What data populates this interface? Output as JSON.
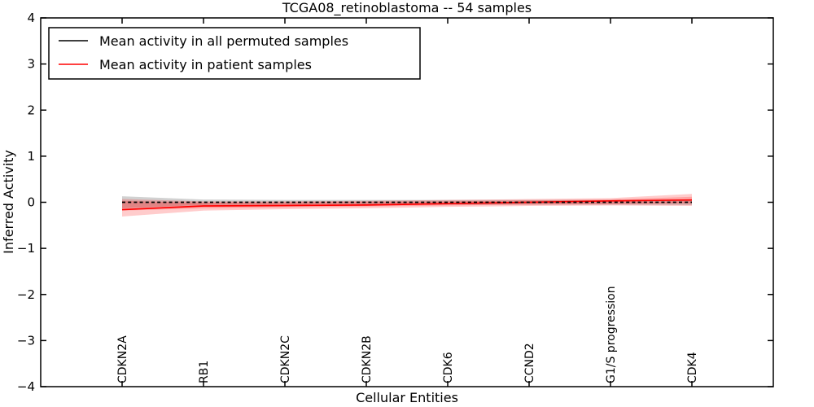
{
  "chart_data": {
    "type": "line",
    "title": "TCGA08_retinoblastoma -- 54 samples",
    "xlabel": "Cellular Entities",
    "ylabel": "Inferred Activity",
    "ylim": [
      -4,
      4
    ],
    "yticks": [
      4,
      3,
      2,
      1,
      0,
      -1,
      -2,
      -3,
      -4
    ],
    "grid": false,
    "legend_position": "upper left",
    "categories": [
      "CDKN2A",
      "RB1",
      "CDKN2C",
      "CDKN2B",
      "CDK6",
      "CCND2",
      "G1/S progression",
      "CDK4"
    ],
    "series": [
      {
        "name": "Mean activity in all permuted samples",
        "color": "#000000",
        "line_style": "dashed",
        "values": [
          0,
          0,
          0,
          0,
          0,
          0,
          0,
          0
        ],
        "band": {
          "upper": [
            0.13,
            0.06,
            0.05,
            0.05,
            0.05,
            0.05,
            0.05,
            0.06
          ],
          "lower": [
            -0.13,
            -0.06,
            -0.05,
            -0.05,
            -0.05,
            -0.05,
            -0.05,
            -0.06
          ],
          "color": "rgba(0,0,0,0.18)"
        }
      },
      {
        "name": "Mean activity in patient samples",
        "color": "#ff0000",
        "line_style": "solid",
        "values": [
          -0.16,
          -0.08,
          -0.07,
          -0.06,
          -0.03,
          0.0,
          0.03,
          0.05
        ],
        "band": {
          "upper": [
            0.07,
            0.02,
            0.02,
            0.03,
            0.05,
            0.07,
            0.09,
            0.18
          ],
          "lower": [
            -0.31,
            -0.18,
            -0.15,
            -0.13,
            -0.1,
            -0.08,
            -0.07,
            -0.08
          ],
          "color": "rgba(255,0,0,0.2)"
        },
        "band_inner": {
          "upper": [
            0.03,
            -0.01,
            0.0,
            0.01,
            0.02,
            0.04,
            0.06,
            0.12
          ],
          "lower": [
            -0.18,
            -0.13,
            -0.11,
            -0.09,
            -0.07,
            -0.05,
            -0.04,
            -0.02
          ],
          "color": "rgba(255,0,0,0.2)"
        }
      }
    ]
  }
}
